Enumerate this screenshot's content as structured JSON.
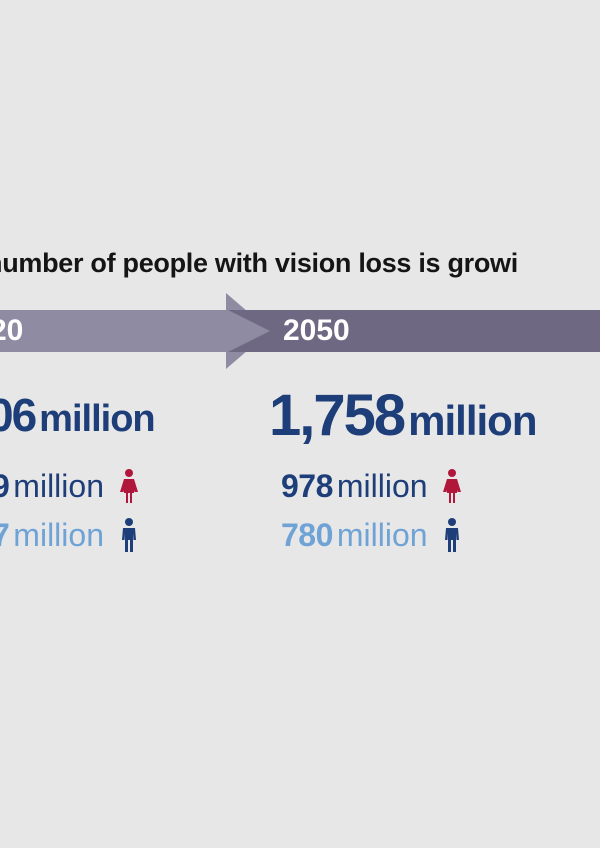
{
  "headline": "number of people with vision loss is growi",
  "colors": {
    "female_icon": "#b0173a",
    "male_icon": "#1d3e78",
    "total": "#1d3e78",
    "male_text": "#6fa3d6"
  },
  "years": [
    {
      "year": "20",
      "total_value": "06",
      "total_unit": "million",
      "female_value": "9",
      "female_unit": "million",
      "male_value": "7",
      "male_unit": "million"
    },
    {
      "year": "2050",
      "total_value": "1,758",
      "total_unit": "million",
      "female_value": "978",
      "female_unit": "million",
      "male_value": "780",
      "male_unit": "million"
    }
  ],
  "icons": {
    "female": "female-person-icon",
    "male": "male-person-icon"
  }
}
